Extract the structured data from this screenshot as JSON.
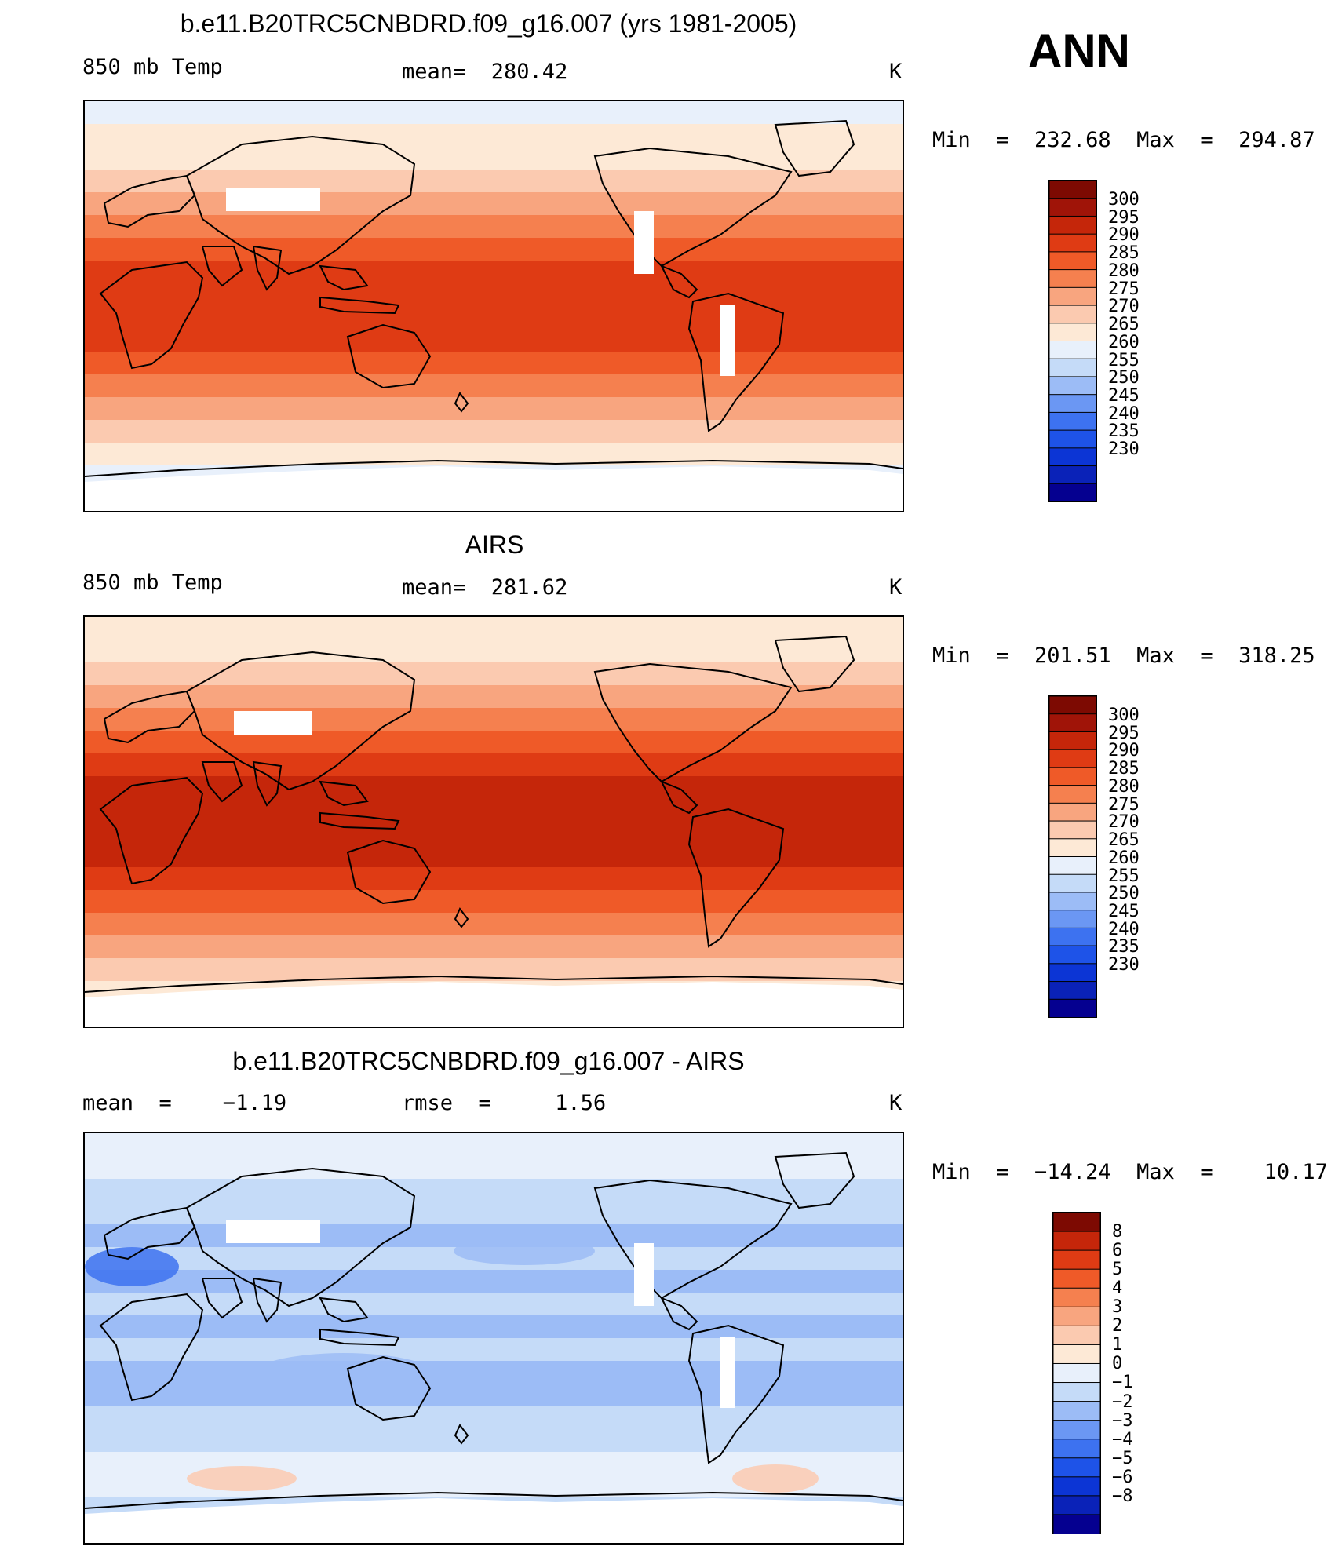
{
  "page_title": "ANN",
  "colors": {
    "temp_scale": [
      "#050090",
      "#0a22b8",
      "#0c35d5",
      "#1e53e8",
      "#3d72f0",
      "#6b97f3",
      "#9cbcf6",
      "#c5dbf8",
      "#e8f0fb",
      "#fde9d6",
      "#fbcab0",
      "#f8a57f",
      "#f5804f",
      "#ef5a28",
      "#df3b14",
      "#c5260a",
      "#a01408",
      "#7d0a02"
    ],
    "diff_scale": [
      "#050090",
      "#0a22b8",
      "#0c35d5",
      "#1e53e8",
      "#3d72f0",
      "#6b97f3",
      "#9cbcf6",
      "#c5dbf8",
      "#e8f0fb",
      "#fde9d6",
      "#fbcab0",
      "#f8a57f",
      "#f5804f",
      "#ef5a28",
      "#df3b14",
      "#c5260a",
      "#7d0a02"
    ]
  },
  "chart_data": [
    {
      "type": "heatmap",
      "title": "b.e11.B20TRC5CNBDRD.f09_g16.007 (yrs 1981-2005)",
      "left_label": "850 mb Temp",
      "center_label": "mean=  280.42",
      "units": "K",
      "min_max": "Min  =  232.68  Max  =  294.87",
      "colorbar_levels": [
        "300",
        "295",
        "290",
        "285",
        "280",
        "275",
        "270",
        "265",
        "260",
        "255",
        "250",
        "245",
        "240",
        "235",
        "230"
      ],
      "field": "model"
    },
    {
      "type": "heatmap",
      "title": "AIRS",
      "left_label": "850 mb Temp",
      "center_label": "mean=  281.62",
      "units": "K",
      "min_max": "Min  =  201.51  Max  =  318.25",
      "colorbar_levels": [
        "300",
        "295",
        "290",
        "285",
        "280",
        "275",
        "270",
        "265",
        "260",
        "255",
        "250",
        "245",
        "240",
        "235",
        "230"
      ],
      "field": "obs"
    },
    {
      "type": "heatmap",
      "title": "b.e11.B20TRC5CNBDRD.f09_g16.007 - AIRS",
      "left_label": "mean  =    −1.19",
      "center_label": "rmse  =     1.56",
      "units": "K",
      "min_max": "Min  =  −14.24  Max  =    10.17",
      "colorbar_levels": [
        "8",
        "6",
        "5",
        "4",
        "3",
        "2",
        "1",
        "0",
        "−1",
        "−2",
        "−3",
        "−4",
        "−5",
        "−6",
        "−8"
      ],
      "field": "diff"
    }
  ]
}
